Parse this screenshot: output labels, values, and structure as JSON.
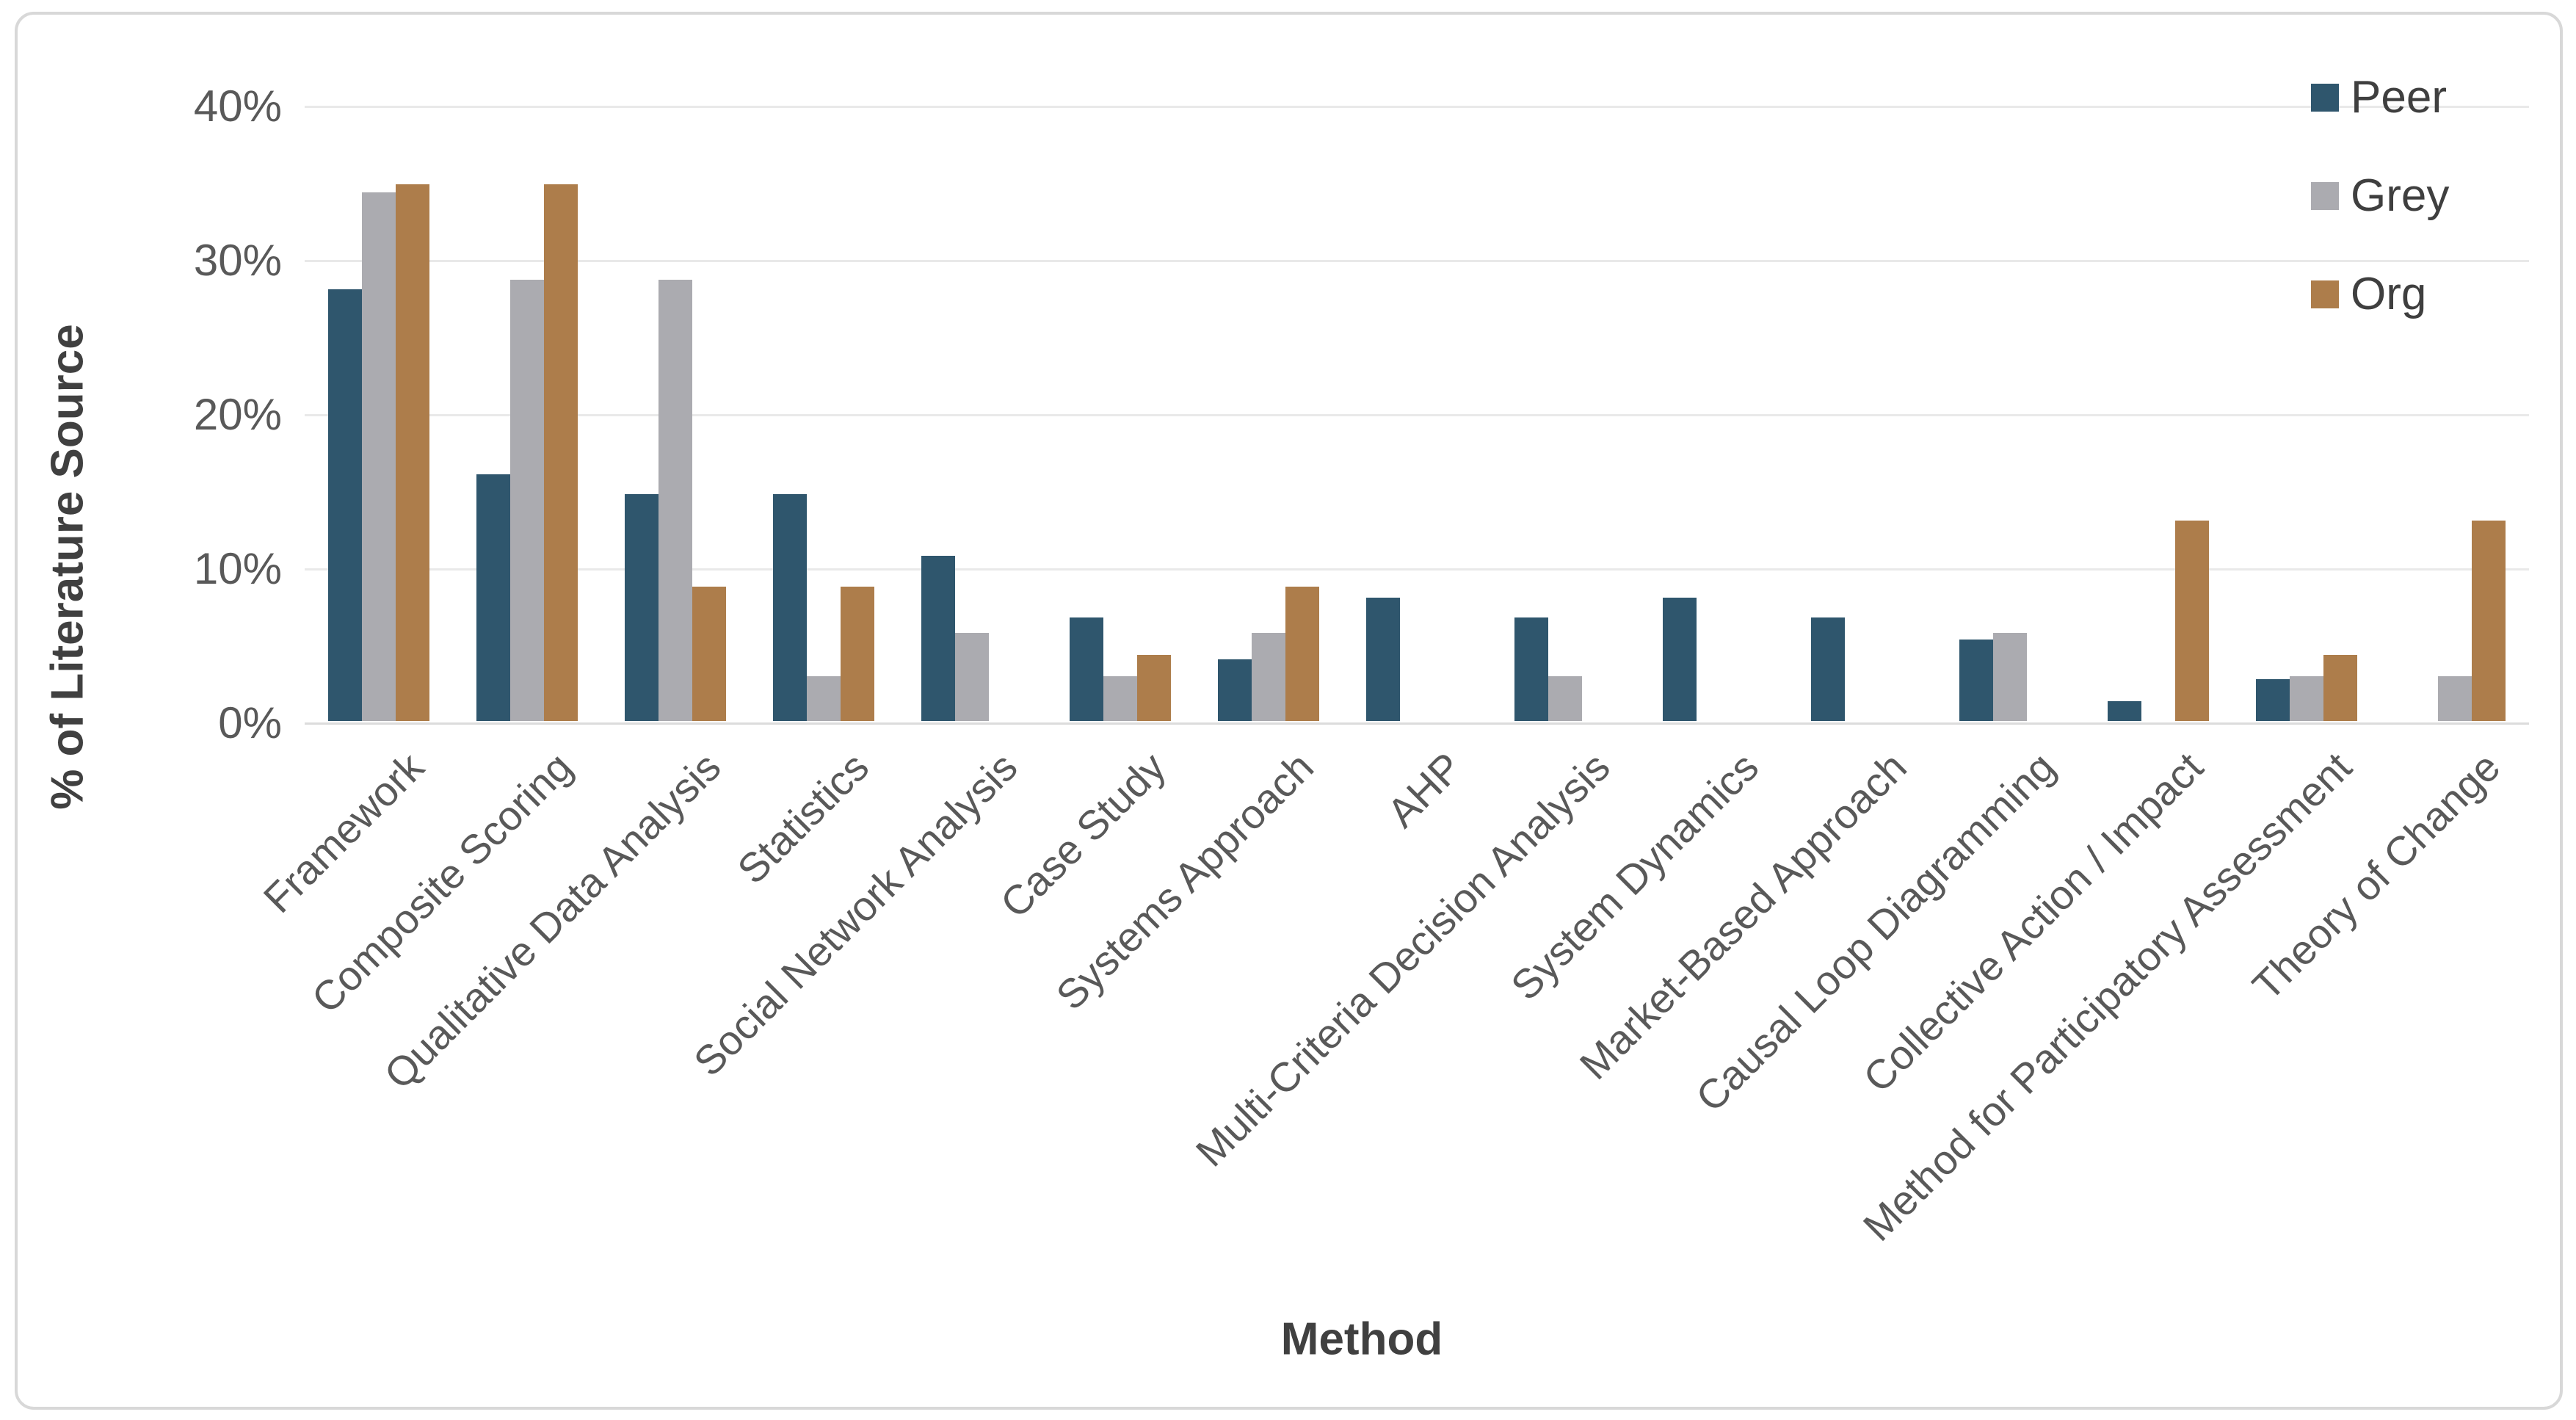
{
  "figure": {
    "background_color": "#ffffff",
    "border_color": "#d8d8d8"
  },
  "chart_data": {
    "type": "bar",
    "title": "",
    "xlabel": "Method",
    "ylabel": "% of Literature Source",
    "ylim": [
      0,
      40
    ],
    "ytick_labels": [
      "0%",
      "10%",
      "20%",
      "30%",
      "40%"
    ],
    "ytick_values": [
      0,
      10,
      20,
      30,
      40
    ],
    "grid": "horizontal",
    "legend_position": "top-right",
    "categories": [
      "Framework",
      "Composite Scoring",
      "Qualitative Data Analysis",
      "Statistics",
      "Social Network Analysis",
      "Case Study",
      "Systems Approach",
      "AHP",
      "Multi-Criteria Decision Analysis",
      "System Dynamics",
      "Market-Based Approach",
      "Causal Loop Diagramming",
      "Collective Action / Impact",
      "Method for Participatory Assessment",
      "Theory of Change"
    ],
    "series": [
      {
        "name": "Peer",
        "color": "#2F566D",
        "values": [
          28.0,
          16.0,
          14.7,
          14.7,
          10.7,
          6.7,
          4.0,
          8.0,
          6.7,
          8.0,
          6.7,
          5.3,
          1.3,
          2.7,
          0
        ]
      },
      {
        "name": "Grey",
        "color": "#ABABB0",
        "values": [
          34.3,
          28.6,
          28.6,
          2.9,
          5.7,
          2.9,
          5.7,
          0,
          2.9,
          0,
          0,
          5.7,
          0,
          2.9,
          2.9
        ]
      },
      {
        "name": "Org",
        "color": "#AD7D4B",
        "values": [
          34.8,
          34.8,
          8.7,
          8.7,
          0,
          4.3,
          8.7,
          0,
          0,
          0,
          0,
          0,
          13.0,
          4.3,
          13.0
        ]
      }
    ]
  }
}
